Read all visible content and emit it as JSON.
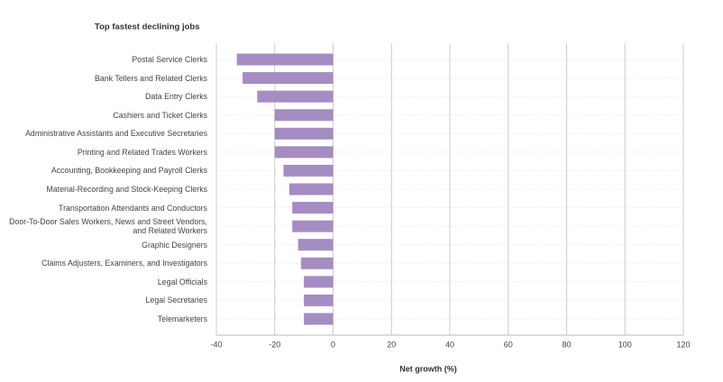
{
  "chart_data": {
    "type": "hbar",
    "title": "Top fastest declining jobs",
    "x_label": "Net growth (%)",
    "categories": [
      "Postal Service Clerks",
      "Bank Tellers and Related Clerks",
      "Data Entry Clerks",
      "Cashiers and Ticket Clerks",
      "Administrative Assistants and Executive Secretaries",
      "Printing and Related Trades Workers",
      "Accounting, Bookkeeping and Payroll Clerks",
      "Material-Recording and Stock-Keeping Clerks",
      "Transportation Attendants and Conductors",
      "Door-To-Door Sales Workers, News and Street Vendors, and Related Workers",
      "Graphic Designers",
      "Claims Adjusters, Examiners, and Investigators",
      "Legal Officials",
      "Legal Secretaries",
      "Telemarketers"
    ],
    "values": [
      -33,
      -31,
      -26,
      -20,
      -20,
      -20,
      -17,
      -15,
      -14,
      -14,
      -12,
      -11,
      -10,
      -10,
      -10
    ],
    "color": "#a58cc3",
    "xlim": [
      -40,
      120
    ],
    "xticks": [
      -40,
      -20,
      0,
      20,
      40,
      60,
      80,
      100,
      120
    ],
    "grid": true
  }
}
